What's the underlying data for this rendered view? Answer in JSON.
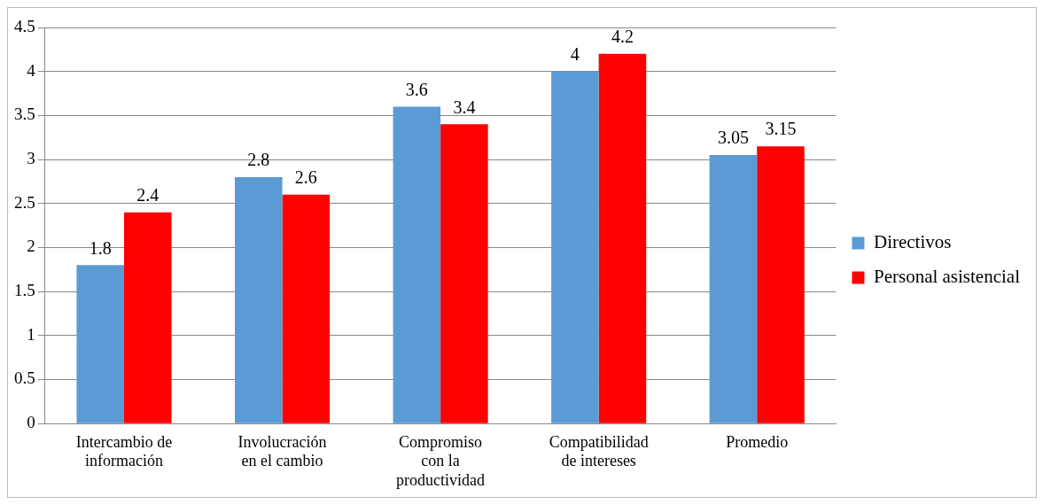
{
  "chart_data": {
    "type": "bar",
    "categories": [
      "Intercambio de\ninformación",
      "Involucración\nen el cambio",
      "Compromiso\ncon la\nproductividad",
      "Compatibilidad\nde intereses",
      "Promedio"
    ],
    "series": [
      {
        "name": "Directivos",
        "color": "#5b9bd5",
        "values": [
          1.8,
          2.8,
          3.6,
          4,
          3.05
        ]
      },
      {
        "name": "Personal asistencial",
        "color": "#ff0000",
        "values": [
          2.4,
          2.6,
          3.4,
          4.2,
          3.15
        ]
      }
    ],
    "ylim": [
      0,
      4.5
    ],
    "yticks": [
      0,
      0.5,
      1,
      1.5,
      2,
      2.5,
      3,
      3.5,
      4,
      4.5
    ],
    "grid": "y",
    "legend": "right",
    "data_labels": true
  }
}
